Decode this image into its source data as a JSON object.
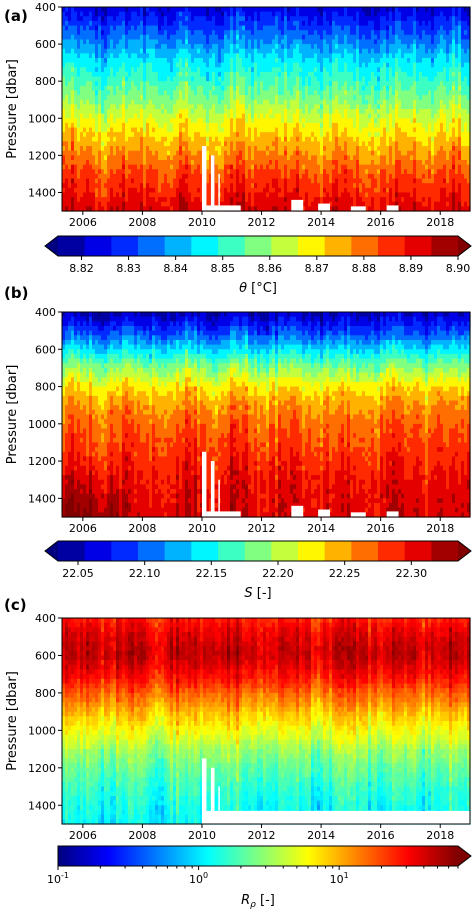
{
  "chart_data": [
    {
      "type": "heatmap",
      "panel_label": "(a)",
      "ylabel": "Pressure [dbar]",
      "xlim": [
        2005.3,
        2019.0
      ],
      "ylim": [
        1500,
        400
      ],
      "x_ticks": [
        "2006",
        "2008",
        "2010",
        "2012",
        "2014",
        "2016",
        "2018"
      ],
      "y_ticks": [
        "400",
        "600",
        "800",
        "1000",
        "1200",
        "1400"
      ],
      "colorbar": {
        "label_main": "θ",
        "label_unit": " [°C]",
        "scale": "linear",
        "range": [
          8.815,
          8.9
        ],
        "ticks": [
          "8.82",
          "8.83",
          "8.84",
          "8.85",
          "8.86",
          "8.87",
          "8.88",
          "8.89",
          "8.90"
        ],
        "extend": "both",
        "bands": 15
      },
      "profile": {
        "pressure": [
          400,
          500,
          600,
          700,
          800,
          900,
          1000,
          1100,
          1200,
          1300,
          1400,
          1500
        ],
        "value": [
          8.822,
          8.83,
          8.838,
          8.846,
          8.852,
          8.858,
          8.866,
          8.872,
          8.878,
          8.884,
          8.888,
          8.893
        ]
      }
    },
    {
      "type": "heatmap",
      "panel_label": "(b)",
      "ylabel": "Pressure [dbar]",
      "xlim": [
        2005.3,
        2019.0
      ],
      "ylim": [
        1500,
        400
      ],
      "x_ticks": [
        "2006",
        "2008",
        "2010",
        "2012",
        "2014",
        "2016",
        "2018"
      ],
      "y_ticks": [
        "400",
        "600",
        "800",
        "1000",
        "1200",
        "1400"
      ],
      "colorbar": {
        "label_main": "S",
        "label_unit": " [-]",
        "scale": "linear",
        "range": [
          22.035,
          22.335
        ],
        "ticks": [
          "22.05",
          "22.10",
          "22.15",
          "22.20",
          "22.25",
          "22.30"
        ],
        "extend": "both",
        "bands": 15
      },
      "profile": {
        "pressure": [
          400,
          500,
          600,
          700,
          800,
          900,
          1000,
          1100,
          1200,
          1300,
          1400,
          1500
        ],
        "value": [
          22.05,
          22.09,
          22.14,
          22.19,
          22.23,
          22.255,
          22.27,
          22.28,
          22.29,
          22.3,
          22.305,
          22.31
        ]
      }
    },
    {
      "type": "heatmap",
      "panel_label": "(c)",
      "ylabel": "Pressure [dbar]",
      "xlim": [
        2005.3,
        2019.0
      ],
      "ylim": [
        1500,
        400
      ],
      "x_ticks": [
        "2006",
        "2008",
        "2010",
        "2012",
        "2014",
        "2016",
        "2018"
      ],
      "y_ticks": [
        "400",
        "600",
        "800",
        "1000",
        "1200",
        "1400"
      ],
      "colorbar": {
        "label_main": "R",
        "label_sub": "ρ",
        "label_unit": " [-]",
        "scale": "log",
        "range": [
          0.1,
          70
        ],
        "ticks": [
          "10^-1",
          "10^0",
          "10^1"
        ],
        "extend": "max",
        "bands": 0
      },
      "profile": {
        "pressure": [
          400,
          500,
          600,
          700,
          800,
          900,
          1000,
          1100,
          1200,
          1300,
          1400,
          1500
        ],
        "value": [
          25,
          38,
          45,
          30,
          16,
          9,
          5.5,
          3.2,
          2.2,
          1.6,
          1.3,
          1.1
        ]
      }
    }
  ]
}
